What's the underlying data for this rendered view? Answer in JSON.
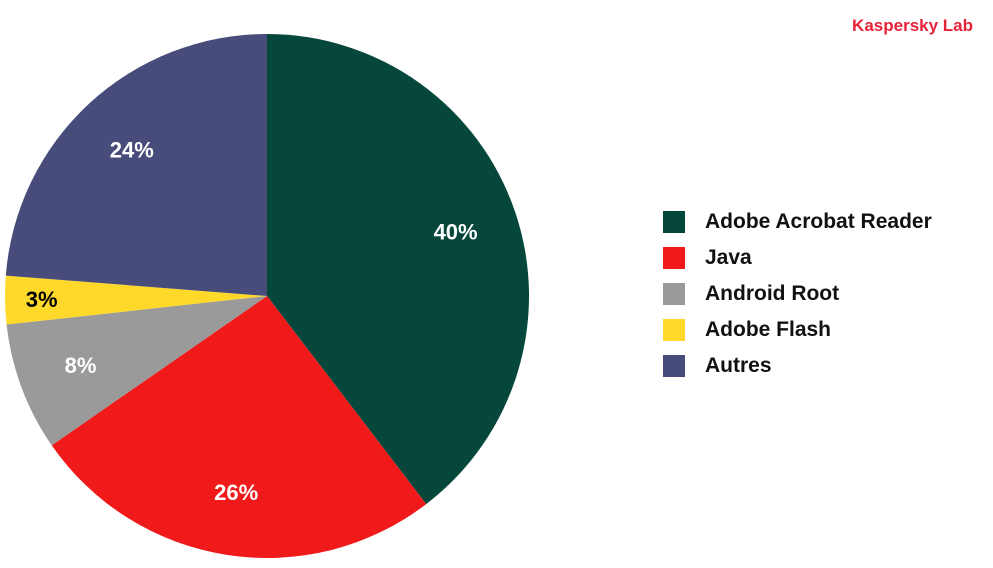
{
  "brand": "Kaspersky Lab",
  "chart_data": {
    "type": "pie",
    "title": "",
    "labels": [
      "Adobe Acrobat Reader",
      "Java",
      "Android Root",
      "Adobe Flash",
      "Autres"
    ],
    "values": [
      40,
      26,
      8,
      3,
      24
    ],
    "value_labels": [
      "40%",
      "26%",
      "8%",
      "3%",
      "24%"
    ],
    "colors": [
      "#06473c",
      "#f11a1a",
      "#9a9a9a",
      "#ffd92a",
      "#484c7b"
    ],
    "label_colors": [
      "#ffffff",
      "#ffffff",
      "#ffffff",
      "#000000",
      "#ffffff"
    ],
    "start_angle": "12 o'clock",
    "direction": "clockwise",
    "legend": "right"
  }
}
